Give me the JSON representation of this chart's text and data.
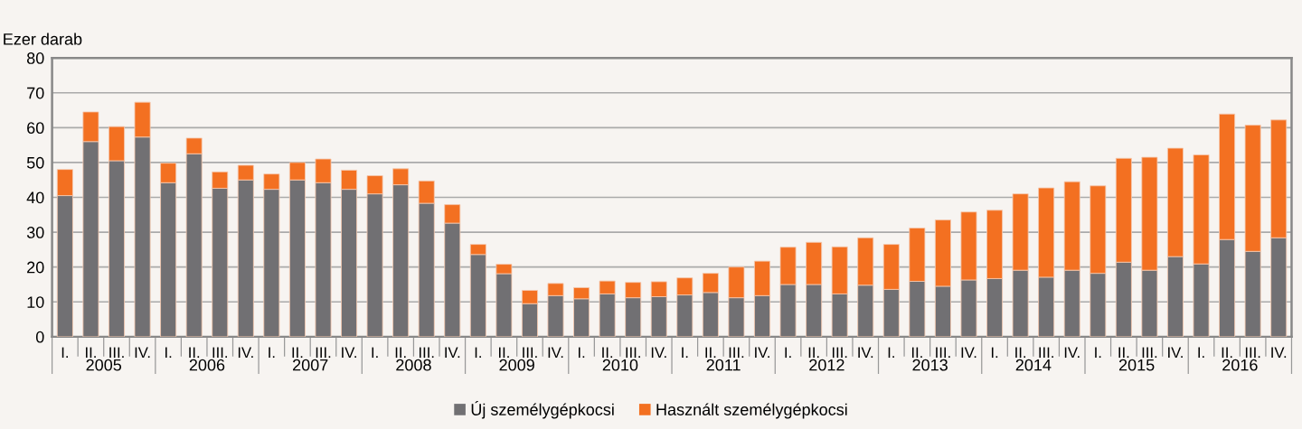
{
  "chart_data": {
    "type": "bar",
    "stacked": true,
    "ylabel": "Ezer darab",
    "categories": [
      "I.",
      "II.",
      "III.",
      "IV.",
      "I.",
      "II.",
      "III.",
      "IV.",
      "I.",
      "II.",
      "III.",
      "IV.",
      "I.",
      "II.",
      "III.",
      "IV.",
      "I.",
      "II.",
      "III.",
      "IV.",
      "I.",
      "II.",
      "III.",
      "IV.",
      "I.",
      "II.",
      "III.",
      "IV.",
      "I.",
      "II.",
      "III.",
      "IV.",
      "I.",
      "II.",
      "III.",
      "IV.",
      "I.",
      "II.",
      "III.",
      "IV.",
      "I.",
      "II.",
      "III.",
      "IV.",
      "I.",
      "II.",
      "III.",
      "IV."
    ],
    "annotations": [
      "2005",
      "2006",
      "2007",
      "2008",
      "2009",
      "2010",
      "2011",
      "2012",
      "2013",
      "2014",
      "2015",
      "2016"
    ],
    "series": [
      {
        "name": "Új személygépkocsi",
        "color": "#717073",
        "values": [
          40.5,
          56,
          50.5,
          57.3,
          44.2,
          52.5,
          42.6,
          45,
          42.3,
          45,
          44.2,
          42.3,
          41,
          43.6,
          38.3,
          32.6,
          23.6,
          18.1,
          9.5,
          11.8,
          10.9,
          12.3,
          11.2,
          11.5,
          12.0,
          12.7,
          11.2,
          11.8,
          15.0,
          15.0,
          12.3,
          14.8,
          13.6,
          15.9,
          14.5,
          16.3,
          16.7,
          19.1,
          17.1,
          19.1,
          18.2,
          21.4,
          19.1,
          23.0,
          20.9,
          27.9,
          24.5,
          28.4
        ]
      },
      {
        "name": "Használt személygépkocsi",
        "color": "#f37021",
        "values": [
          7.5,
          8.5,
          9.8,
          10.0,
          5.6,
          4.5,
          4.7,
          4.2,
          4.4,
          5.0,
          6.8,
          5.5,
          5.2,
          4.6,
          6.4,
          5.3,
          2.9,
          2.7,
          3.8,
          3.5,
          3.2,
          3.7,
          4.4,
          4.3,
          4.9,
          5.5,
          8.8,
          9.9,
          10.7,
          12.1,
          13.5,
          13.6,
          12.9,
          15.3,
          19.0,
          19.5,
          19.6,
          21.9,
          25.6,
          25.4,
          25.1,
          29.8,
          32.4,
          31.1,
          31.3,
          36.0,
          36.2,
          33.8
        ]
      }
    ],
    "ylim": [
      0,
      80
    ],
    "yticks": [
      0,
      10,
      20,
      30,
      40,
      50,
      60,
      70,
      80
    ],
    "grid": "y",
    "legend": "bottom"
  }
}
